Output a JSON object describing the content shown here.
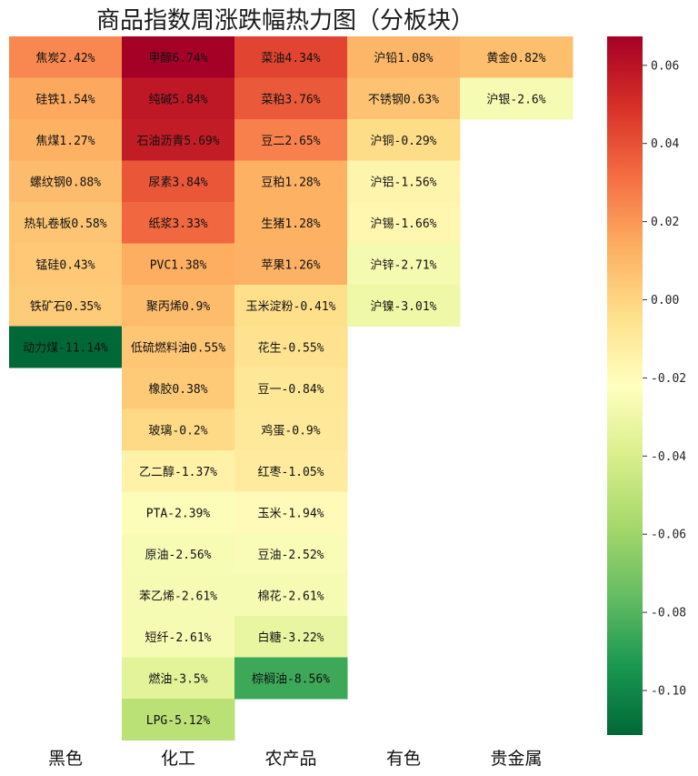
{
  "chart_data": {
    "type": "heatmap",
    "title": "商品指数周涨跌幅热力图（分板块）",
    "colorbar": {
      "vmin": -0.1114,
      "vmax": 0.0674,
      "ticks": [
        0.06,
        0.04,
        0.02,
        0.0,
        -0.02,
        -0.04,
        -0.06,
        -0.08,
        -0.1
      ],
      "tick_labels": [
        "0.06",
        "0.04",
        "0.02",
        "0.00",
        "-0.02",
        "-0.04",
        "-0.06",
        "-0.08",
        "-0.10"
      ],
      "colormap": "RdYlGn_r"
    },
    "columns": [
      {
        "name": "黑色",
        "cells": [
          {
            "label": "焦炭2.42%",
            "value": 0.0242
          },
          {
            "label": "硅铁1.54%",
            "value": 0.0154
          },
          {
            "label": "焦煤1.27%",
            "value": 0.0127
          },
          {
            "label": "螺纹钢0.88%",
            "value": 0.0088
          },
          {
            "label": "热轧卷板0.58%",
            "value": 0.0058
          },
          {
            "label": "锰硅0.43%",
            "value": 0.0043
          },
          {
            "label": "铁矿石0.35%",
            "value": 0.0035
          },
          {
            "label": "动力煤-11.14%",
            "value": -0.1114
          }
        ]
      },
      {
        "name": "化工",
        "cells": [
          {
            "label": "甲醇6.74%",
            "value": 0.0674
          },
          {
            "label": "纯碱5.84%",
            "value": 0.0584
          },
          {
            "label": "石油沥青5.69%",
            "value": 0.0569
          },
          {
            "label": "尿素3.84%",
            "value": 0.0384
          },
          {
            "label": "纸浆3.33%",
            "value": 0.0333
          },
          {
            "label": "PVC1.38%",
            "value": 0.0138
          },
          {
            "label": "聚丙烯0.9%",
            "value": 0.009
          },
          {
            "label": "低硫燃料油0.55%",
            "value": 0.0055
          },
          {
            "label": "橡胶0.38%",
            "value": 0.0038
          },
          {
            "label": "玻璃-0.2%",
            "value": -0.002
          },
          {
            "label": "乙二醇-1.37%",
            "value": -0.0137
          },
          {
            "label": "PTA-2.39%",
            "value": -0.0239
          },
          {
            "label": "原油-2.56%",
            "value": -0.0256
          },
          {
            "label": "苯乙烯-2.61%",
            "value": -0.0261
          },
          {
            "label": "短纤-2.61%",
            "value": -0.0261
          },
          {
            "label": "燃油-3.5%",
            "value": -0.035
          },
          {
            "label": "LPG-5.12%",
            "value": -0.0512
          }
        ]
      },
      {
        "name": "农产品",
        "cells": [
          {
            "label": "菜油4.34%",
            "value": 0.0434
          },
          {
            "label": "菜粕3.76%",
            "value": 0.0376
          },
          {
            "label": "豆二2.65%",
            "value": 0.0265
          },
          {
            "label": "豆粕1.28%",
            "value": 0.0128
          },
          {
            "label": "生猪1.28%",
            "value": 0.0128
          },
          {
            "label": "苹果1.26%",
            "value": 0.0126
          },
          {
            "label": "玉米淀粉-0.41%",
            "value": -0.0041
          },
          {
            "label": "花生-0.55%",
            "value": -0.0055
          },
          {
            "label": "豆一-0.84%",
            "value": -0.0084
          },
          {
            "label": "鸡蛋-0.9%",
            "value": -0.009
          },
          {
            "label": "红枣-1.05%",
            "value": -0.0105
          },
          {
            "label": "玉米-1.94%",
            "value": -0.0194
          },
          {
            "label": "豆油-2.52%",
            "value": -0.0252
          },
          {
            "label": "棉花-2.61%",
            "value": -0.0261
          },
          {
            "label": "白糖-3.22%",
            "value": -0.0322
          },
          {
            "label": "棕榈油-8.56%",
            "value": -0.0856
          }
        ]
      },
      {
        "name": "有色",
        "cells": [
          {
            "label": "沪铅1.08%",
            "value": 0.0108
          },
          {
            "label": "不锈钢0.63%",
            "value": 0.0063
          },
          {
            "label": "沪铜-0.29%",
            "value": -0.0029
          },
          {
            "label": "沪铝-1.56%",
            "value": -0.0156
          },
          {
            "label": "沪锡-1.66%",
            "value": -0.0166
          },
          {
            "label": "沪锌-2.71%",
            "value": -0.0271
          },
          {
            "label": "沪镍-3.01%",
            "value": -0.0301
          }
        ]
      },
      {
        "name": "贵金属",
        "cells": [
          {
            "label": "黄金0.82%",
            "value": 0.0082
          },
          {
            "label": "沪银-2.6%",
            "value": -0.026
          }
        ]
      }
    ]
  }
}
